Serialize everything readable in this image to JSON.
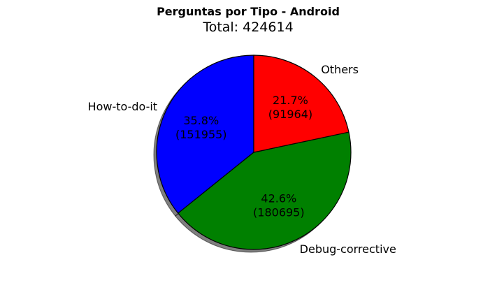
{
  "chart_data": {
    "type": "pie",
    "title": "Perguntas por Tipo - Android",
    "subtitle": "Total: 424614",
    "shadow": true,
    "start_angle_deg": 90,
    "direction": "counterclockwise",
    "slices": [
      {
        "label": "How-to-do-it",
        "value": 151955,
        "percent": "35.8%",
        "value_text": "(151955)",
        "color": "#0000ff"
      },
      {
        "label": "Debug-corrective",
        "value": 180695,
        "percent": "42.6%",
        "value_text": "(180695)",
        "color": "#008000"
      },
      {
        "label": "Others",
        "value": 91964,
        "percent": "21.7%",
        "value_text": "(91964)",
        "color": "#ff0000"
      }
    ]
  }
}
